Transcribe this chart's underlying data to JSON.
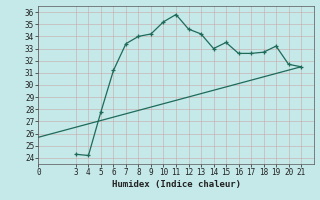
{
  "xlabel": "Humidex (Indice chaleur)",
  "background_color": "#c5e8e8",
  "grid_color": "#c8a8a8",
  "line_color": "#1e6b5a",
  "xlim": [
    0,
    22
  ],
  "ylim": [
    23.5,
    36.5
  ],
  "yticks": [
    24,
    25,
    26,
    27,
    28,
    29,
    30,
    31,
    32,
    33,
    34,
    35,
    36
  ],
  "xticks": [
    0,
    3,
    4,
    5,
    6,
    7,
    8,
    9,
    10,
    11,
    12,
    13,
    14,
    15,
    16,
    17,
    18,
    19,
    20,
    21
  ],
  "line1_x": [
    3,
    4,
    5,
    6,
    7,
    8,
    9,
    10,
    11,
    12,
    13,
    14,
    15,
    16,
    17,
    18,
    19,
    20,
    21
  ],
  "line1_y": [
    24.3,
    24.2,
    27.8,
    31.2,
    33.4,
    34.0,
    34.2,
    35.2,
    35.8,
    34.6,
    34.2,
    33.0,
    33.5,
    32.6,
    32.6,
    32.7,
    33.2,
    31.7,
    31.5
  ],
  "line2_x": [
    0,
    21
  ],
  "line2_y": [
    25.7,
    31.5
  ],
  "marker_size": 3.5,
  "line_width": 0.9,
  "tick_fontsize": 5.5,
  "xlabel_fontsize": 6.5
}
